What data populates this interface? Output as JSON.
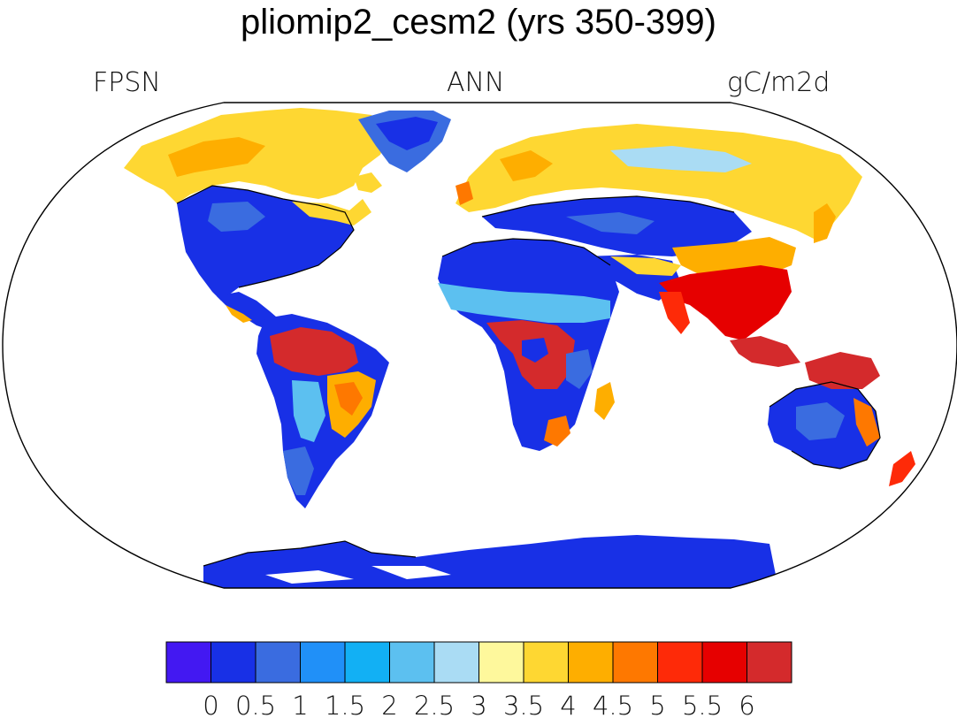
{
  "title": "pliomip2_cesm2 (yrs 350-399)",
  "labels": {
    "left": "FPSN",
    "center": "ANN",
    "right": "gC/m2d"
  },
  "colorbar": {
    "colors": [
      "#4318f2",
      "#1830e6",
      "#3a6ce0",
      "#2090f8",
      "#12b0f4",
      "#5cc0f0",
      "#aadcf4",
      "#fef89c",
      "#fed732",
      "#feae00",
      "#fe7800",
      "#fe2a08",
      "#e60000",
      "#d42a2c"
    ],
    "labels": [
      "0",
      "0.5",
      "1",
      "1.5",
      "2",
      "2.5",
      "3",
      "3.5",
      "4",
      "4.5",
      "5",
      "5.5",
      "6"
    ]
  },
  "palette": {
    "land_low": "#1830e6",
    "land_mid": "#3a6ce0",
    "land_light": "#5cc0f0",
    "land_yellow": "#fed732",
    "land_orange": "#feae00",
    "land_red": "#e03030",
    "coast": "#000000",
    "ocean": "#ffffff"
  },
  "icons": [
    "map-outline-icon"
  ]
}
